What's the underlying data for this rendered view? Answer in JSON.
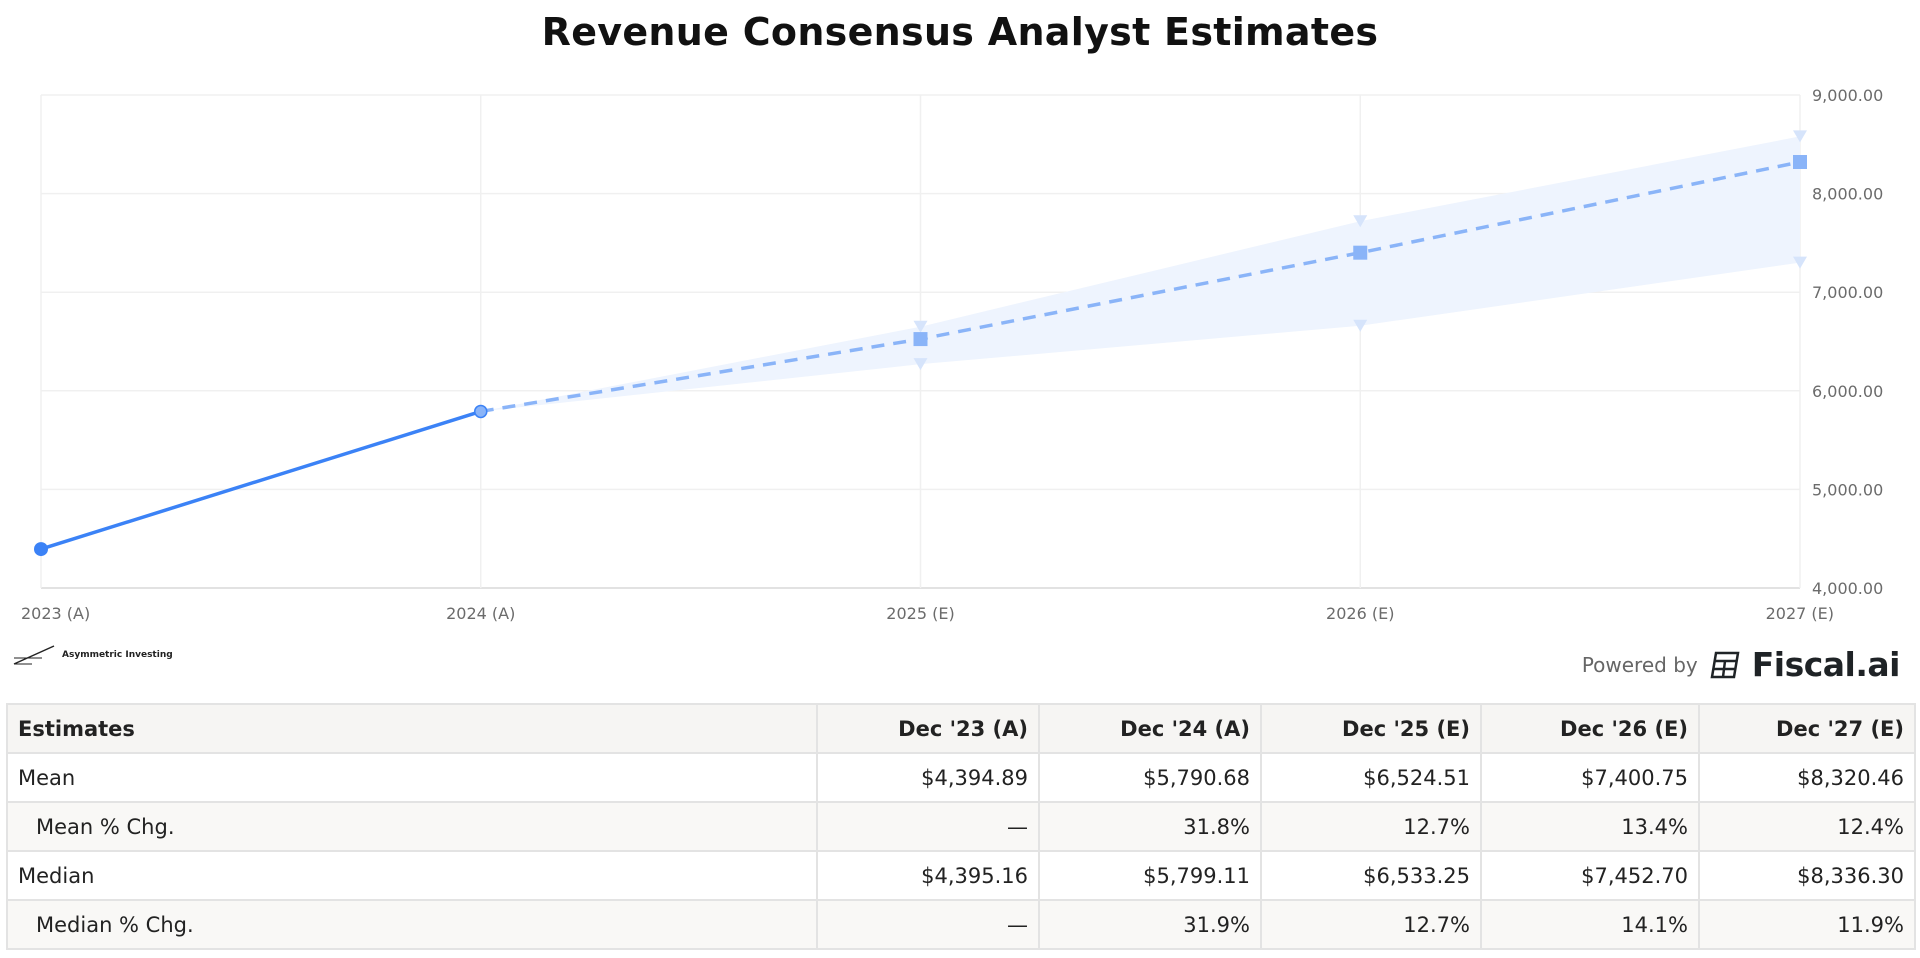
{
  "title": "Revenue Consensus Analyst Estimates",
  "chart_data": {
    "type": "line",
    "title": "Revenue Consensus Analyst Estimates",
    "categories": [
      "2023 (A)",
      "2024 (A)",
      "2025 (E)",
      "2026 (E)",
      "2027 (E)"
    ],
    "y_ticks": [
      "4,000.00",
      "5,000.00",
      "6,000.00",
      "7,000.00",
      "8,000.00",
      "9,000.00"
    ],
    "ylim": [
      4000,
      9000
    ],
    "y_axis_side": "right",
    "grid": true,
    "series": [
      {
        "kind": "actual",
        "style": "solid",
        "values": [
          4394.89,
          5790.68,
          null,
          null,
          null
        ]
      },
      {
        "kind": "estimate",
        "style": "dashed",
        "values": [
          null,
          5790.68,
          6524.51,
          7400.75,
          8320.46
        ]
      },
      {
        "kind": "high",
        "style": "range-upper",
        "values": [
          null,
          5790.68,
          6650,
          7720,
          8580
        ]
      },
      {
        "kind": "low",
        "style": "range-lower",
        "values": [
          null,
          5790.68,
          6270,
          6660,
          7300
        ]
      }
    ],
    "colors": {
      "actual": "#3b82f6",
      "estimate": "#8ab4f8",
      "band": "#eef4fe",
      "bounds": "#d6e4fb",
      "grid": "#f0f0f0"
    }
  },
  "branding": {
    "left": "Asymmetric Investing",
    "powered_by": "Powered by",
    "provider": "Fiscal.ai"
  },
  "table": {
    "headers": [
      "Estimates",
      "Dec '23 (A)",
      "Dec '24 (A)",
      "Dec '25 (E)",
      "Dec '26 (E)",
      "Dec '27 (E)"
    ],
    "rows": [
      {
        "label": "Mean",
        "sub": false,
        "cells": [
          "$4,394.89",
          "$5,790.68",
          "$6,524.51",
          "$7,400.75",
          "$8,320.46"
        ]
      },
      {
        "label": "Mean % Chg.",
        "sub": true,
        "cells": [
          "—",
          "31.8%",
          "12.7%",
          "13.4%",
          "12.4%"
        ]
      },
      {
        "label": "Median",
        "sub": false,
        "cells": [
          "$4,395.16",
          "$5,799.11",
          "$6,533.25",
          "$7,452.70",
          "$8,336.30"
        ]
      },
      {
        "label": "Median % Chg.",
        "sub": true,
        "cells": [
          "—",
          "31.9%",
          "12.7%",
          "14.1%",
          "11.9%"
        ]
      }
    ]
  }
}
